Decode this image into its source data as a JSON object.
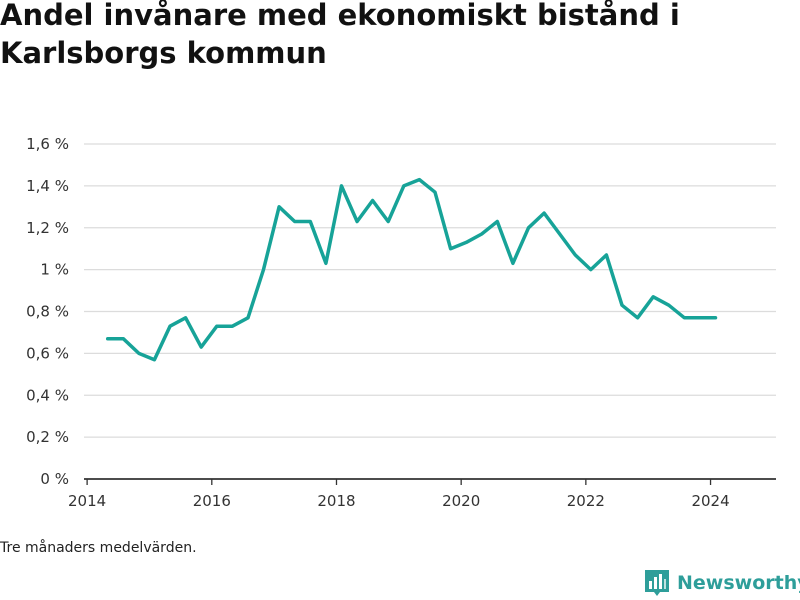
{
  "title": "Andel invånare med ekonomiskt bistånd i Karlsborgs kommun",
  "footnote": "Tre månaders medelvärden.",
  "brand": {
    "name": "Newsworthy",
    "icon": "bar-chart-icon",
    "color": "#2e9e9a"
  },
  "colors": {
    "line": "#17a398",
    "grid": "#dcdcdc",
    "axis": "#333333"
  },
  "chart_data": {
    "type": "line",
    "title": "Andel invånare med ekonomiskt bistånd i Karlsborgs kommun",
    "xlabel": "",
    "ylabel": "",
    "xlim": [
      2013.95,
      2025.05
    ],
    "ylim": [
      0,
      1.6
    ],
    "x_ticks": [
      2014,
      2016,
      2018,
      2020,
      2022,
      2024
    ],
    "x_tick_labels": [
      "2014",
      "2016",
      "2018",
      "2020",
      "2022",
      "2024"
    ],
    "y_ticks": [
      0,
      0.2,
      0.4,
      0.6,
      0.8,
      1.0,
      1.2,
      1.4,
      1.6
    ],
    "y_tick_labels": [
      "0 %",
      "0,2 %",
      "0,4 %",
      "0,6 %",
      "0,8 %",
      "1 %",
      "1,2 %",
      "1,4 %",
      "1,6 %"
    ],
    "grid": true,
    "series": [
      {
        "x": [
          2014.33,
          2014.58,
          2014.83,
          2015.08,
          2015.33,
          2015.58,
          2015.83,
          2016.08,
          2016.33,
          2016.58,
          2016.83,
          2017.08,
          2017.33,
          2017.58,
          2017.83,
          2018.08,
          2018.33,
          2018.58,
          2018.83,
          2019.08,
          2019.33,
          2019.58,
          2019.83,
          2020.08,
          2020.33,
          2020.58,
          2020.83,
          2021.08,
          2021.33,
          2021.58,
          2021.83,
          2022.08,
          2022.33,
          2022.58,
          2022.83,
          2023.08,
          2023.33,
          2023.58,
          2023.83,
          2024.08
        ],
        "values": [
          0.67,
          0.67,
          0.6,
          0.57,
          0.73,
          0.77,
          0.63,
          0.73,
          0.73,
          0.77,
          1.0,
          1.3,
          1.23,
          1.23,
          1.03,
          1.4,
          1.23,
          1.33,
          1.23,
          1.4,
          1.43,
          1.37,
          1.1,
          1.13,
          1.17,
          1.23,
          1.03,
          1.2,
          1.27,
          1.17,
          1.07,
          1.0,
          1.07,
          0.83,
          0.77,
          0.87,
          0.83,
          0.77,
          0.77,
          0.77
        ]
      }
    ]
  }
}
